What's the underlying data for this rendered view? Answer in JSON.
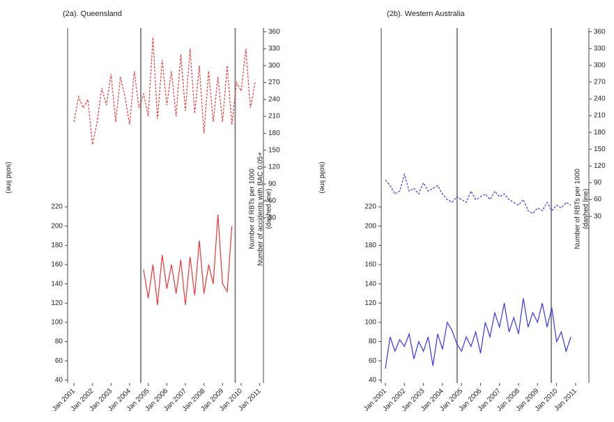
{
  "chart_data": [
    {
      "type": "line",
      "title": "(2a). Queensland",
      "ylabel": "(solid line)",
      "y2label": [
        "Number of RBTs per 1000",
        "Number of accidents with BAC 0.05+",
        "(dashed line)"
      ],
      "xlim": [
        2000.66,
        2011.2
      ],
      "xticks": [
        {
          "value": 2001,
          "label": "Jan 2001"
        },
        {
          "value": 2002,
          "label": "Jan 2002"
        },
        {
          "value": 2003,
          "label": "Jan 2003"
        },
        {
          "value": 2004,
          "label": "Jan 2004"
        },
        {
          "value": 2005,
          "label": "Jan 2005"
        },
        {
          "value": 2006,
          "label": "Jan 2006"
        },
        {
          "value": 2007,
          "label": "Jan 2007"
        },
        {
          "value": 2008,
          "label": "Jan 2008"
        },
        {
          "value": 2009,
          "label": "Jan 2009"
        },
        {
          "value": 2010,
          "label": "Jan 2010"
        },
        {
          "value": 2011,
          "label": "Jan 2011"
        }
      ],
      "ylim": [
        37,
        406
      ],
      "yticks": [
        40,
        60,
        80,
        100,
        120,
        140,
        160,
        180,
        200,
        220
      ],
      "y2lim": [
        -263,
        367
      ],
      "y2ticks": [
        30,
        60,
        90,
        120,
        150,
        180,
        210,
        240,
        270,
        300,
        330,
        360
      ],
      "vlines": [
        2004.6,
        2009.68
      ],
      "series": [
        {
          "color": "#ee3333",
          "dashed": false,
          "axis": "y",
          "x": [
            2004.75,
            2005.0,
            2005.25,
            2005.5,
            2005.75,
            2006.0,
            2006.25,
            2006.5,
            2006.75,
            2007.0,
            2007.25,
            2007.5,
            2007.75,
            2008.0,
            2008.25,
            2008.5,
            2008.75,
            2009.0,
            2009.25,
            2009.5
          ],
          "values": [
            155,
            125,
            160,
            118,
            170,
            135,
            160,
            130,
            165,
            118,
            168,
            128,
            185,
            130,
            160,
            140,
            212,
            140,
            132,
            200
          ]
        },
        {
          "color": "#ee3333",
          "dashed": true,
          "axis": "y2",
          "x": [
            2001.0,
            2001.25,
            2001.5,
            2001.75,
            2002.0,
            2002.25,
            2002.5,
            2002.75,
            2003.0,
            2003.25,
            2003.5,
            2003.75,
            2004.0,
            2004.25,
            2004.5,
            2004.75,
            2005.0,
            2005.25,
            2005.5,
            2005.75,
            2006.0,
            2006.25,
            2006.5,
            2006.75,
            2007.0,
            2007.25,
            2007.5,
            2007.75,
            2008.0,
            2008.25,
            2008.5,
            2008.75,
            2009.0,
            2009.25,
            2009.5,
            2009.75,
            2010.0,
            2010.25,
            2010.5,
            2010.75
          ],
          "values": [
            200,
            245,
            225,
            240,
            160,
            200,
            260,
            230,
            285,
            200,
            280,
            245,
            195,
            290,
            225,
            250,
            210,
            350,
            205,
            310,
            230,
            290,
            210,
            320,
            220,
            330,
            215,
            300,
            180,
            290,
            200,
            280,
            200,
            300,
            195,
            270,
            255,
            330,
            225,
            270
          ]
        }
      ]
    },
    {
      "type": "line",
      "title": "(2b). Western Australia",
      "ylabel": "(solid line)",
      "y2label": [
        "Number of RBTs per 1000",
        "(dashed line)"
      ],
      "xlim": [
        2000.78,
        2011.7
      ],
      "xticks": [
        {
          "value": 2001,
          "label": "Jan 2001"
        },
        {
          "value": 2002,
          "label": "Jan 2002"
        },
        {
          "value": 2003,
          "label": "Jan 2003"
        },
        {
          "value": 2004,
          "label": "Jan 2004"
        },
        {
          "value": 2005,
          "label": "Jan 2005"
        },
        {
          "value": 2006,
          "label": "Jan 2006"
        },
        {
          "value": 2007,
          "label": "Jan 2007"
        },
        {
          "value": 2008,
          "label": "Jan 2008"
        },
        {
          "value": 2009,
          "label": "Jan 2009"
        },
        {
          "value": 2010,
          "label": "Jan 2010"
        },
        {
          "value": 2011,
          "label": "Jan 2011"
        }
      ],
      "ylim": [
        37,
        406
      ],
      "yticks": [
        40,
        60,
        80,
        100,
        120,
        140,
        160,
        180,
        200,
        220
      ],
      "y2lim": [
        -268,
        367
      ],
      "y2ticks": [
        30,
        60,
        90,
        120,
        150,
        180,
        210,
        240,
        270,
        300,
        330,
        360
      ],
      "vlines": [
        2004.77,
        2009.72
      ],
      "series": [
        {
          "color": "#3333ee",
          "dashed": false,
          "axis": "y",
          "x": [
            2001.0,
            2001.25,
            2001.5,
            2001.75,
            2002.0,
            2002.25,
            2002.5,
            2002.75,
            2003.0,
            2003.25,
            2003.5,
            2003.75,
            2004.0,
            2004.25,
            2004.5,
            2004.75,
            2005.0,
            2005.25,
            2005.5,
            2005.75,
            2006.0,
            2006.25,
            2006.5,
            2006.75,
            2007.0,
            2007.25,
            2007.5,
            2007.75,
            2008.0,
            2008.25,
            2008.5,
            2008.75,
            2009.0,
            2009.25,
            2009.5,
            2009.75,
            2010.0,
            2010.25,
            2010.5,
            2010.75
          ],
          "values": [
            52,
            85,
            70,
            82,
            75,
            88,
            62,
            80,
            70,
            85,
            55,
            88,
            72,
            100,
            92,
            78,
            70,
            85,
            75,
            90,
            68,
            100,
            85,
            110,
            95,
            120,
            90,
            105,
            88,
            125,
            95,
            110,
            100,
            120,
            95,
            115,
            80,
            90,
            70,
            85
          ]
        },
        {
          "color": "#3333ee",
          "dashed": true,
          "axis": "y2",
          "x": [
            2001.0,
            2001.25,
            2001.5,
            2001.75,
            2002.0,
            2002.25,
            2002.5,
            2002.75,
            2003.0,
            2003.25,
            2003.5,
            2003.75,
            2004.0,
            2004.25,
            2004.5,
            2004.75,
            2005.0,
            2005.25,
            2005.5,
            2005.75,
            2006.0,
            2006.25,
            2006.5,
            2006.75,
            2007.0,
            2007.25,
            2007.5,
            2007.75,
            2008.0,
            2008.25,
            2008.5,
            2008.75,
            2009.0,
            2009.25,
            2009.5,
            2009.75,
            2010.0,
            2010.25,
            2010.5,
            2010.75
          ],
          "values": [
            95,
            85,
            70,
            75,
            105,
            75,
            80,
            70,
            90,
            75,
            80,
            85,
            70,
            60,
            55,
            65,
            60,
            55,
            75,
            60,
            65,
            70,
            60,
            75,
            65,
            70,
            60,
            55,
            50,
            60,
            40,
            35,
            45,
            40,
            55,
            40,
            50,
            45,
            55,
            50
          ]
        }
      ]
    }
  ]
}
